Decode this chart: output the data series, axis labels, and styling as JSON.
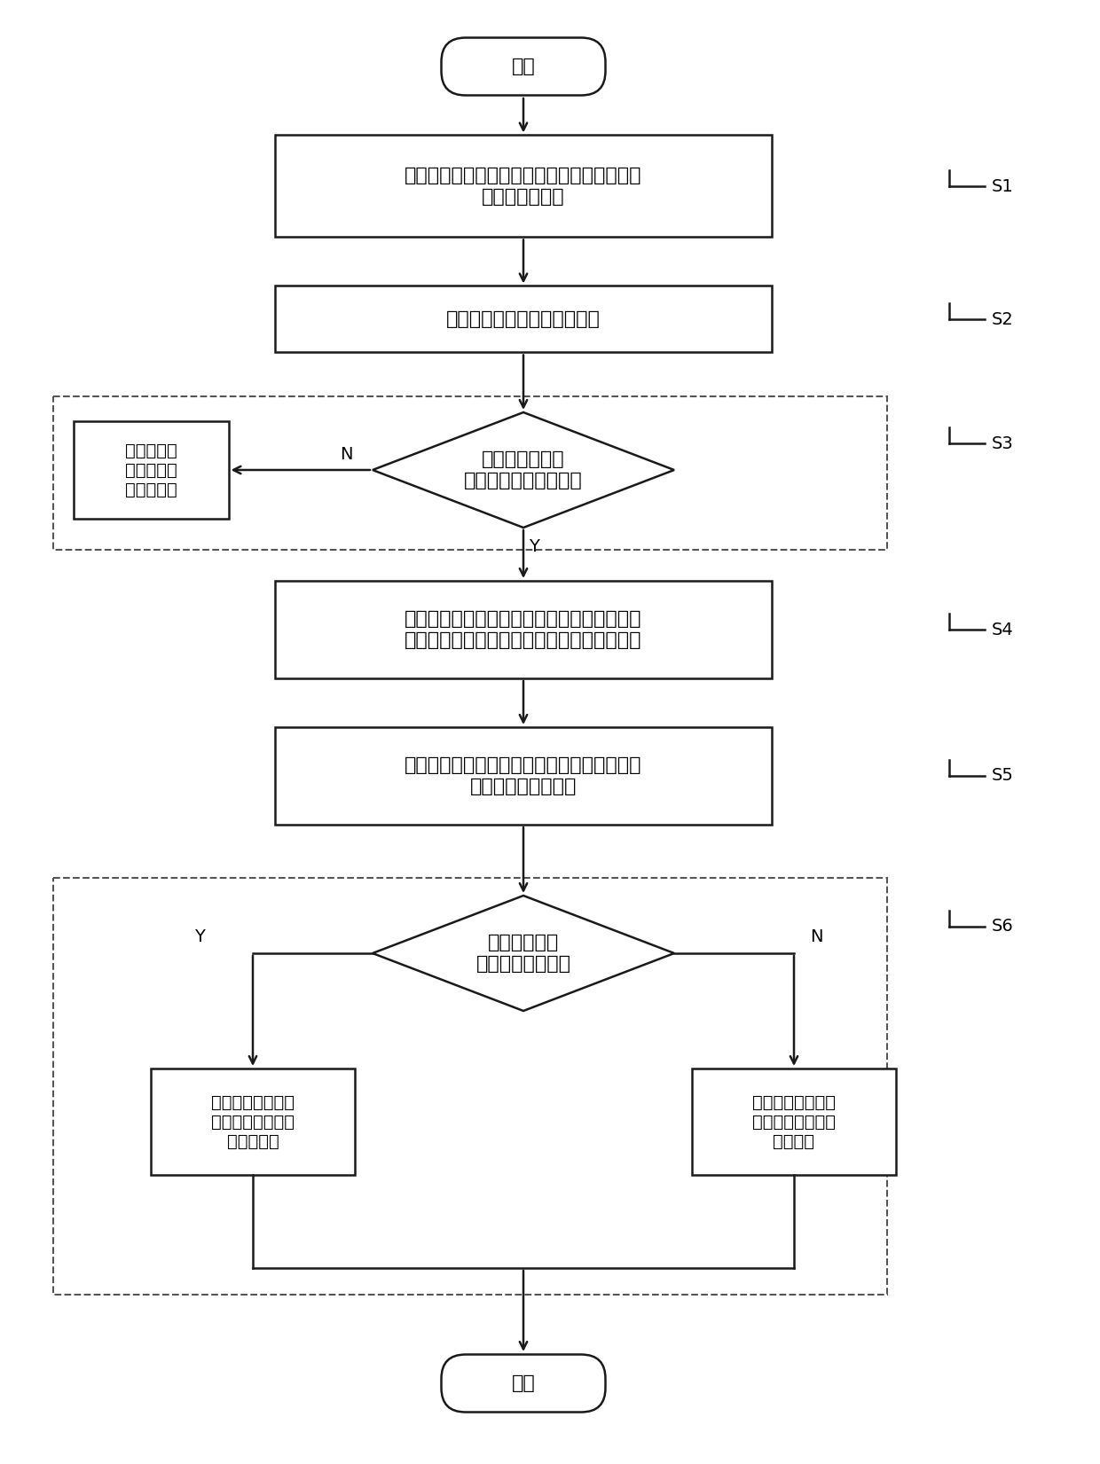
{
  "bg_color": "#ffffff",
  "line_color": "#1a1a1a",
  "line_width": 1.8,
  "font_size_main": 16,
  "font_size_small": 14,
  "font_size_yn": 14,
  "font_size_step": 14,
  "start_text": "开始",
  "end_text": "结束",
  "s1_text": "采集多端直流输电线路在故障点的直流断路器\n处的正负极电流",
  "s2_text": "计算正负极电流的传递熵跌落",
  "s3_text": "所有传递熵跌落\n是否都大于传递熵判据",
  "s3_no_text": "未发生故障\n，该直流断\n路器不动作",
  "s4_text": "使用电流解耦算出零模电流，并根据零模电流\n和故障选极判据进行故障判断，得到故障类型",
  "s5_text": "根据故障类型找到故障极，采集故障极的电流\n信号，计算峭度因子",
  "s6_text": "峭度因子是否\n大于峭度因子判据",
  "s6_yes_text": "该线路发生故障，\n该线路的直流断路\n器触发动作",
  "s6_no_text": "该线路未发生故障\n，该线路的直流断\n路器闭锁",
  "label_N": "N",
  "label_Y": "Y",
  "step_labels": [
    "S1",
    "S2",
    "S3",
    "S4",
    "S5",
    "S6"
  ]
}
